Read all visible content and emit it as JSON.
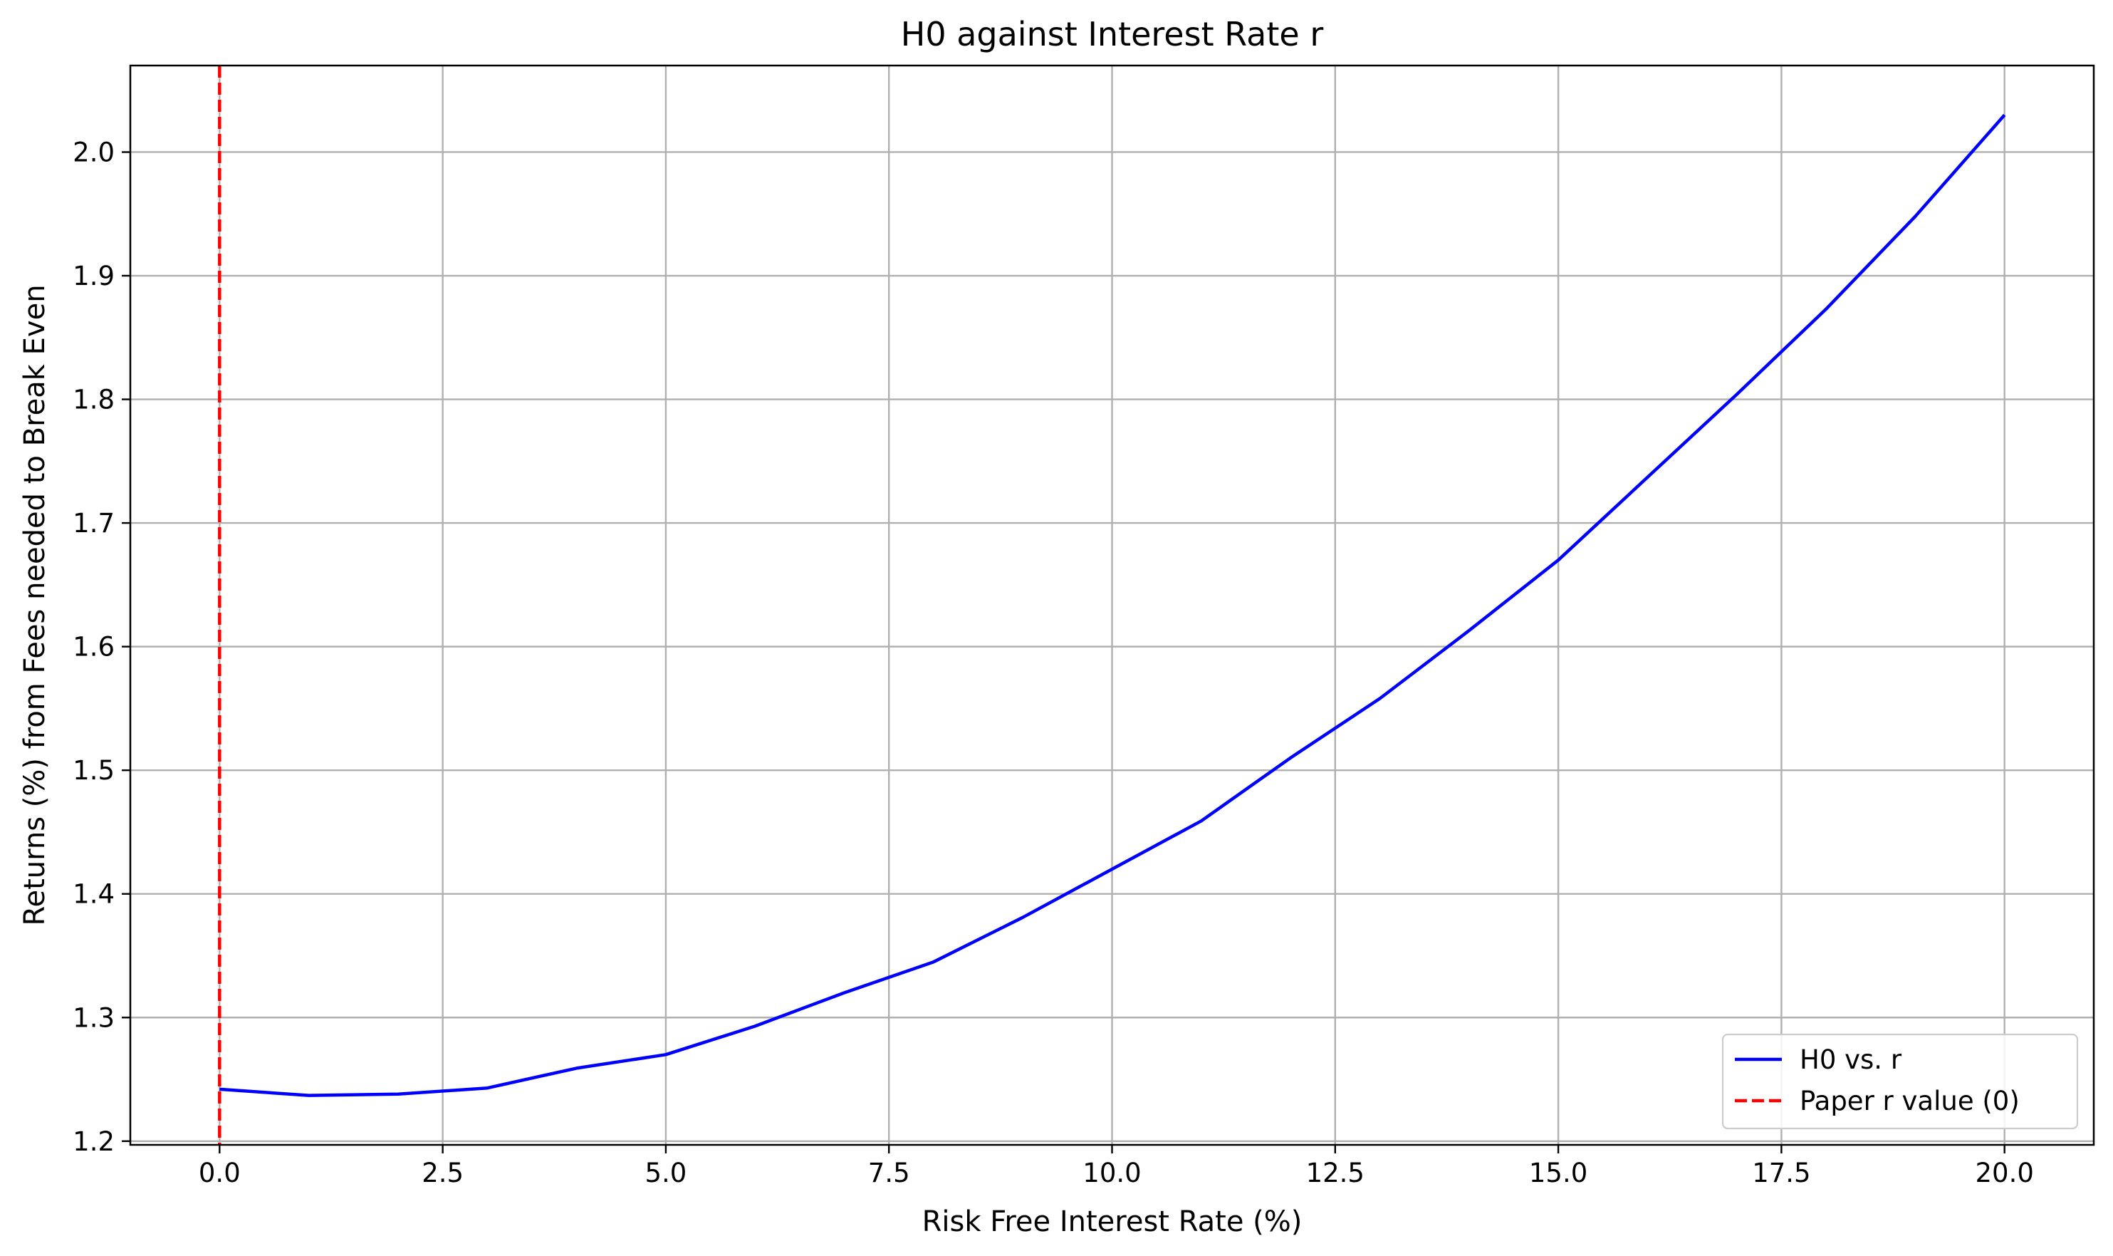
{
  "chart_data": {
    "type": "line",
    "title": "H0 against Interest Rate r",
    "xlabel": "Risk Free Interest Rate (%)",
    "ylabel": "Returns (%) from Fees needed to Break Even",
    "xlim": [
      -1.0,
      21.0
    ],
    "ylim": [
      1.197,
      2.07
    ],
    "xticks": [
      0.0,
      2.5,
      5.0,
      7.5,
      10.0,
      12.5,
      15.0,
      17.5,
      20.0
    ],
    "xtick_labels": [
      "0.0",
      "2.5",
      "5.0",
      "7.5",
      "10.0",
      "12.5",
      "15.0",
      "17.5",
      "20.0"
    ],
    "yticks": [
      1.2,
      1.3,
      1.4,
      1.5,
      1.6,
      1.7,
      1.8,
      1.9,
      2.0
    ],
    "ytick_labels": [
      "1.2",
      "1.3",
      "1.4",
      "1.5",
      "1.6",
      "1.7",
      "1.8",
      "1.9",
      "2.0"
    ],
    "grid": true,
    "legend_position": "lower-right",
    "series": [
      {
        "name": "H0 vs. r",
        "color": "#0000ff",
        "style": "solid",
        "x": [
          0,
          1,
          2,
          3,
          4,
          5,
          6,
          7,
          8,
          9,
          10,
          11,
          12,
          13,
          14,
          15,
          16,
          17,
          18,
          19,
          20
        ],
        "y": [
          1.242,
          1.237,
          1.238,
          1.243,
          1.259,
          1.27,
          1.293,
          1.32,
          1.345,
          1.381,
          1.42,
          1.459,
          1.51,
          1.558,
          1.613,
          1.67,
          1.737,
          1.804,
          1.873,
          1.948,
          2.03
        ]
      },
      {
        "name": "Paper r value (0)",
        "color": "#ff0000",
        "style": "dashed",
        "type": "vline",
        "x": 0
      }
    ]
  }
}
